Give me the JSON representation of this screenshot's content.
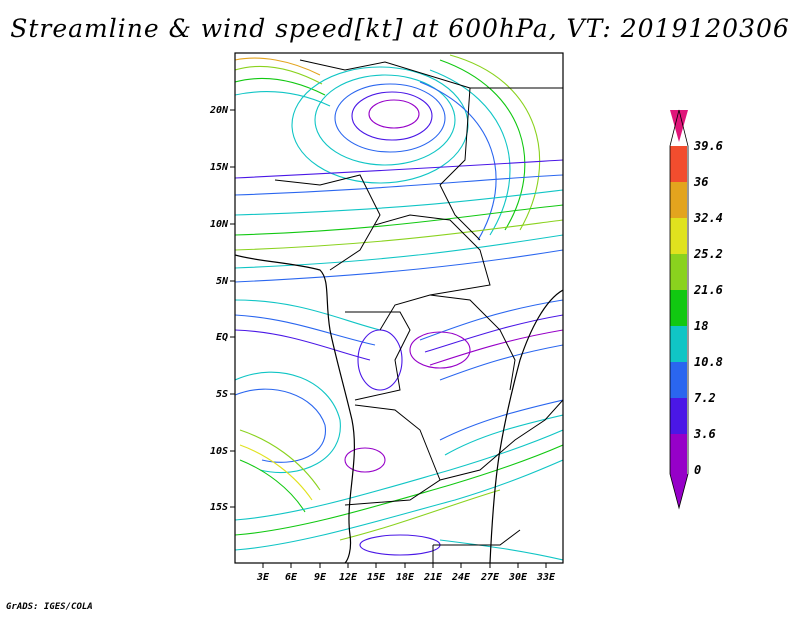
{
  "title": "Streamline & wind speed[kt] at 600hPa, VT: 2019120306",
  "credit": "GrADS: IGES/COLA",
  "map": {
    "lat_labels": [
      "20N",
      "15N",
      "10N",
      "5N",
      "EQ",
      "5S",
      "10S",
      "15S"
    ],
    "lon_labels": [
      "3E",
      "6E",
      "9E",
      "12E",
      "15E",
      "18E",
      "21E",
      "24E",
      "27E",
      "30E",
      "33E"
    ]
  },
  "colorbar": {
    "labels": [
      "39.6",
      "36",
      "32.4",
      "25.2",
      "21.6",
      "18",
      "10.8",
      "7.2",
      "3.6",
      "0"
    ],
    "colors": [
      "#9600c8",
      "#4a17e6",
      "#2a66ef",
      "#10c5c5",
      "#11c811",
      "#8ad21e",
      "#e0e21e",
      "#e3a41e",
      "#f24d2e",
      "#e0157a"
    ],
    "color_names": [
      "violet",
      "blue",
      "light-blue",
      "cyan",
      "green",
      "yellow-green",
      "yellow",
      "orange",
      "red",
      "magenta"
    ]
  }
}
